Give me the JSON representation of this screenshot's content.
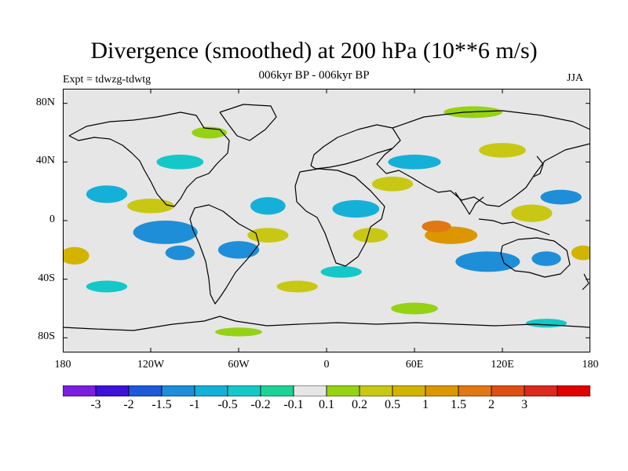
{
  "figure": {
    "title": "Divergence (smoothed) at 200 hPa (10**6 m/s)",
    "subtitle": "006kyr BP - 006kyr BP",
    "left_label": "Expt = tdwzg-tdwtg",
    "right_label": "JJA"
  },
  "map": {
    "projection": "cylindrical equidistant",
    "lon_range": [
      -180,
      180
    ],
    "lat_range": [
      -90,
      90
    ],
    "background_color": "#e6e6e6",
    "coastline_color": "#000000",
    "lat_ticks": [
      {
        "value": 80,
        "label": "80N"
      },
      {
        "value": 40,
        "label": "40N"
      },
      {
        "value": 0,
        "label": "0"
      },
      {
        "value": -40,
        "label": "40S"
      },
      {
        "value": -80,
        "label": "80S"
      }
    ],
    "lon_ticks": [
      {
        "value": -180,
        "label": "180"
      },
      {
        "value": -120,
        "label": "120W"
      },
      {
        "value": -60,
        "label": "60W"
      },
      {
        "value": 0,
        "label": "0"
      },
      {
        "value": 60,
        "label": "60E"
      },
      {
        "value": 120,
        "label": "120E"
      },
      {
        "value": 180,
        "label": "180"
      }
    ],
    "anomaly_blobs": [
      {
        "lon": -110,
        "lat": -8,
        "rx": 22,
        "ry": 8,
        "v": -1
      },
      {
        "lon": -100,
        "lat": -22,
        "rx": 10,
        "ry": 5,
        "v": -1
      },
      {
        "lon": -60,
        "lat": -20,
        "rx": 14,
        "ry": 6,
        "v": -1
      },
      {
        "lon": -150,
        "lat": 18,
        "rx": 14,
        "ry": 6,
        "v": -0.5
      },
      {
        "lon": 110,
        "lat": -28,
        "rx": 22,
        "ry": 7,
        "v": -1
      },
      {
        "lon": 160,
        "lat": 16,
        "rx": 14,
        "ry": 5,
        "v": -1
      },
      {
        "lon": 150,
        "lat": -26,
        "rx": 10,
        "ry": 5,
        "v": -1
      },
      {
        "lon": 60,
        "lat": 40,
        "rx": 18,
        "ry": 5,
        "v": -0.5
      },
      {
        "lon": 20,
        "lat": 8,
        "rx": 16,
        "ry": 6,
        "v": -0.5
      },
      {
        "lon": -40,
        "lat": 10,
        "rx": 12,
        "ry": 6,
        "v": -0.5
      },
      {
        "lon": 85,
        "lat": -10,
        "rx": 18,
        "ry": 6,
        "v": 1.5
      },
      {
        "lon": 75,
        "lat": -4,
        "rx": 10,
        "ry": 4,
        "v": 2
      },
      {
        "lon": -172,
        "lat": -24,
        "rx": 10,
        "ry": 6,
        "v": 1
      },
      {
        "lon": 175,
        "lat": -22,
        "rx": 8,
        "ry": 5,
        "v": 1
      },
      {
        "lon": 45,
        "lat": 25,
        "rx": 14,
        "ry": 5,
        "v": 0.5
      },
      {
        "lon": -40,
        "lat": -10,
        "rx": 14,
        "ry": 5,
        "v": 0.5
      },
      {
        "lon": 30,
        "lat": -10,
        "rx": 12,
        "ry": 5,
        "v": 0.5
      },
      {
        "lon": 120,
        "lat": 48,
        "rx": 16,
        "ry": 5,
        "v": 0.5
      },
      {
        "lon": -20,
        "lat": -45,
        "rx": 14,
        "ry": 4,
        "v": 0.5
      },
      {
        "lon": -120,
        "lat": 10,
        "rx": 16,
        "ry": 5,
        "v": 0.5
      },
      {
        "lon": 140,
        "lat": 5,
        "rx": 14,
        "ry": 6,
        "v": 0.5
      },
      {
        "lon": 60,
        "lat": -60,
        "rx": 16,
        "ry": 4,
        "v": 0.2
      },
      {
        "lon": -80,
        "lat": 60,
        "rx": 12,
        "ry": 4,
        "v": 0.2
      },
      {
        "lon": 100,
        "lat": 74,
        "rx": 20,
        "ry": 4,
        "v": 0.2
      },
      {
        "lon": -150,
        "lat": -45,
        "rx": 14,
        "ry": 4,
        "v": -0.2
      },
      {
        "lon": -100,
        "lat": 40,
        "rx": 16,
        "ry": 5,
        "v": -0.2
      },
      {
        "lon": 10,
        "lat": -35,
        "rx": 14,
        "ry": 4,
        "v": -0.2
      },
      {
        "lon": 150,
        "lat": -70,
        "rx": 14,
        "ry": 3,
        "v": -0.2
      },
      {
        "lon": -60,
        "lat": -76,
        "rx": 16,
        "ry": 3,
        "v": 0.2
      }
    ]
  },
  "colorbar": {
    "colors": [
      "#7c1ee0",
      "#3c12d8",
      "#1e5ad8",
      "#1e8ed8",
      "#14b0d8",
      "#14c8c8",
      "#1ed296",
      "#e6e6e6",
      "#96d214",
      "#c8c814",
      "#d2b400",
      "#dc9600",
      "#e07814",
      "#dc5014",
      "#dc281e",
      "#e00000"
    ],
    "labels": [
      "-3",
      "-2",
      "-1.5",
      "-1",
      "-0.5",
      "-0.2",
      "-0.1",
      "0.1",
      "0.2",
      "0.5",
      "1",
      "1.5",
      "2",
      "3"
    ],
    "levels": [
      -3,
      -2,
      -1.5,
      -1,
      -0.5,
      -0.2,
      -0.1,
      0.1,
      0.2,
      0.5,
      1,
      1.5,
      2,
      3
    ]
  }
}
